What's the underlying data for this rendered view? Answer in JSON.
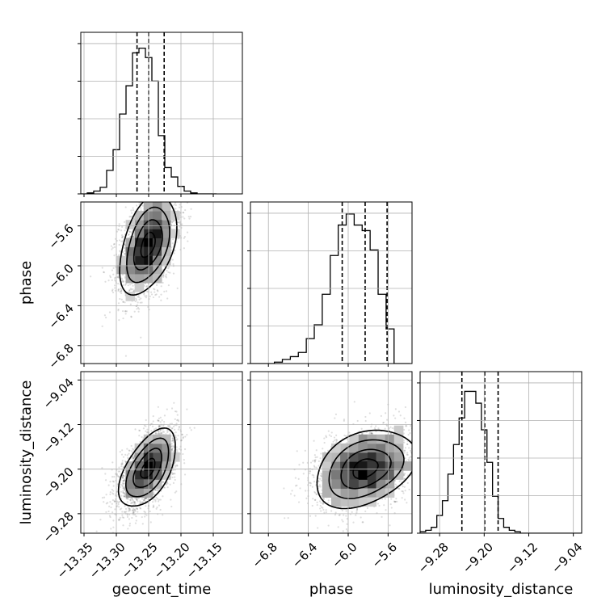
{
  "chart_data": {
    "type": "corner",
    "parameters": [
      "geocent_time",
      "phase",
      "luminosity_distance"
    ],
    "axis_labels": {
      "x": [
        "geocent_time",
        "phase",
        "luminosity_distance"
      ],
      "y": [
        "",
        "phase",
        "luminosity_distance"
      ]
    },
    "ranges": {
      "geocent_time": [
        -13.355,
        -13.105
      ],
      "phase": [
        -6.98,
        -5.36
      ],
      "luminosity_distance": [
        -9.315,
        -9.025
      ]
    },
    "ticks": {
      "geocent_time": {
        "values": [
          -13.35,
          -13.3,
          -13.25,
          -13.2,
          -13.15
        ],
        "labels": [
          "−13.35",
          "−13.30",
          "−13.25",
          "−13.20",
          "−13.15"
        ]
      },
      "phase": {
        "values": [
          -6.8,
          -6.4,
          -6.0,
          -5.6
        ],
        "labels": [
          "−6.8",
          "−6.4",
          "−6.0",
          "−5.6"
        ]
      },
      "luminosity_distance": {
        "values": [
          -9.28,
          -9.2,
          -9.12,
          -9.04
        ],
        "labels": [
          "−9.28",
          "−9.20",
          "−9.12",
          "−9.04"
        ]
      }
    },
    "grid": true,
    "histograms": [
      {
        "parameter": "geocent_time",
        "bin_edges_start": -13.355,
        "bin_width": 0.01,
        "counts": [
          0,
          1,
          3,
          7,
          25,
          47,
          85,
          115,
          150,
          155,
          145,
          120,
          62,
          28,
          18,
          8,
          3,
          1,
          0,
          0,
          0
        ],
        "quantiles": [
          -13.268,
          -13.25,
          -13.226
        ],
        "count_max": 165
      },
      {
        "parameter": "phase",
        "bin_edges_start": -6.98,
        "bin_width": 0.08,
        "counts": [
          0,
          0,
          0,
          1,
          3,
          5,
          8,
          18,
          28,
          50,
          78,
          100,
          108,
          100,
          96,
          82,
          50,
          25,
          0,
          0
        ],
        "quantiles": [
          -6.06,
          -5.83,
          -5.61
        ],
        "count_max": 112
      },
      {
        "parameter": "luminosity_distance",
        "bin_edges_start": -9.315,
        "bin_width": 0.01,
        "counts": [
          1,
          2,
          4,
          12,
          22,
          40,
          60,
          78,
          96,
          96,
          88,
          70,
          48,
          25,
          10,
          4,
          2,
          1,
          0,
          0,
          0,
          0,
          0,
          0,
          0,
          0,
          0,
          0,
          0
        ],
        "quantiles": [
          -9.24,
          -9.199,
          -9.175
        ],
        "count_max": 105
      }
    ],
    "scatter_2d": [
      {
        "x": "geocent_time",
        "y": "phase",
        "mean": [
          -13.251,
          -5.79
        ],
        "std": [
          0.022,
          0.25
        ],
        "correlation": 0.42
      },
      {
        "x": "geocent_time",
        "y": "luminosity_distance",
        "mean": [
          -13.251,
          -9.199
        ],
        "std": [
          0.022,
          0.035
        ],
        "correlation": 0.55
      },
      {
        "x": "phase",
        "y": "luminosity_distance",
        "mean": [
          -5.83,
          -9.199
        ],
        "std": [
          0.25,
          0.035
        ],
        "correlation": 0.33
      }
    ],
    "contour_levels_sigma": [
      0.5,
      1.0,
      1.5,
      2.0
    ]
  }
}
